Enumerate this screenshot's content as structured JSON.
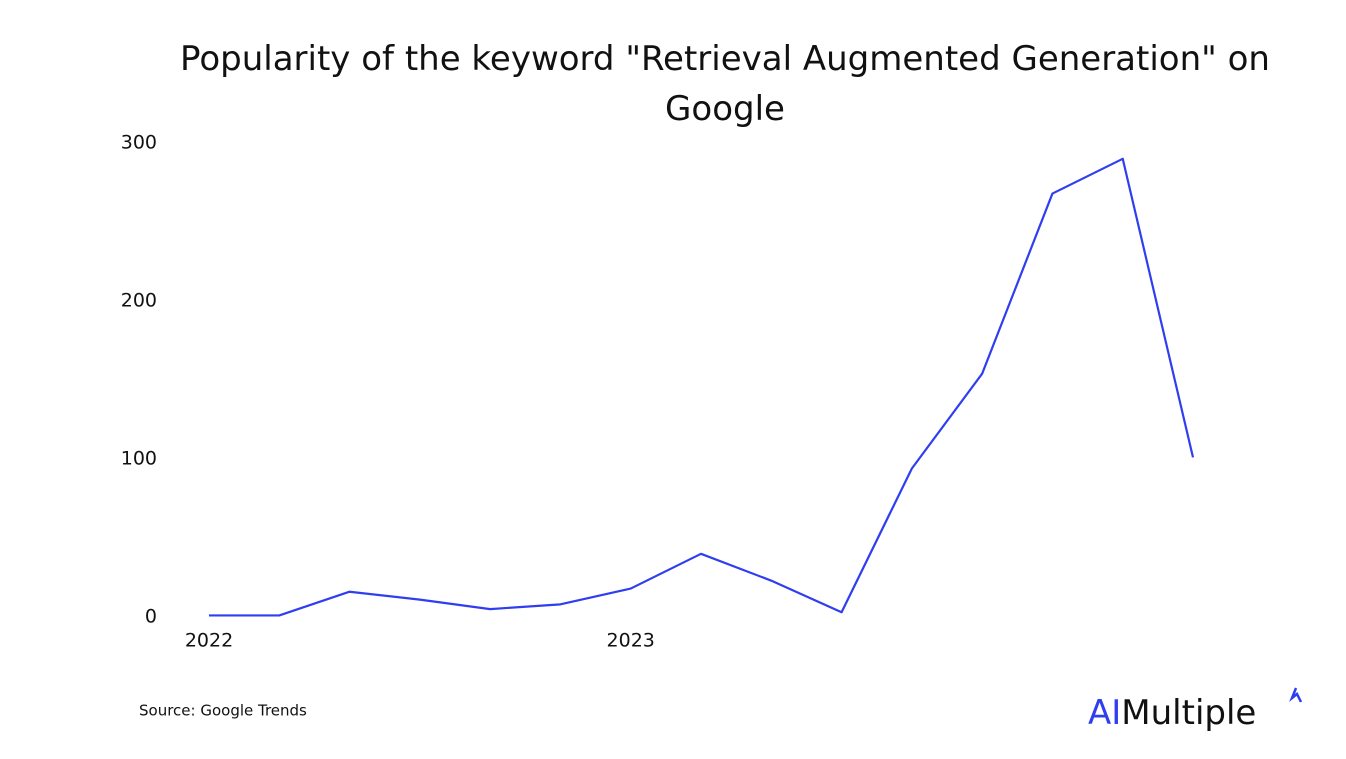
{
  "chart_data": {
    "type": "line",
    "title": "Popularity of the keyword \"Retrieval Augmented Generation\" on Google",
    "categories": [
      "2022",
      null,
      null,
      null,
      null,
      null,
      "2023",
      null,
      null,
      null,
      null,
      null,
      null,
      null,
      null
    ],
    "series": [
      {
        "name": "Retrieval Augmented Generation",
        "color": "#2f3ef0",
        "values": [
          1,
          1,
          16,
          11,
          5,
          8,
          18,
          40,
          23,
          3,
          94,
          154,
          268,
          290,
          101
        ]
      }
    ],
    "ylim": [
      0,
      300
    ],
    "yticks": [
      0,
      100,
      200,
      300
    ],
    "grid": false,
    "source": "Source: Google Trends"
  },
  "logo": {
    "accent": "AI",
    "rest": "Multiple"
  }
}
